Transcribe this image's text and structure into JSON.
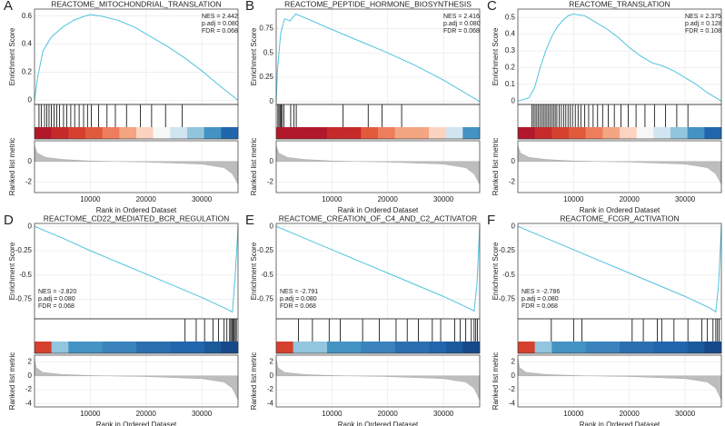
{
  "chart_data": [
    {
      "type": "gsea",
      "panel_label": "A",
      "title": "REACTOME_MITOCHONDRIAL_TRANSLATION",
      "annotations": [
        "NES = 2.442",
        "p.adj = 0.080",
        "FDR = 0.068"
      ],
      "stats_corner": "top-right",
      "ylabel": "Enrichment Score",
      "metric_ylabel": "Ranked list metric",
      "xlabel": "Rank in Ordered Dataset",
      "color": "#4fc3e0",
      "grid": true,
      "x": [
        0,
        500,
        1500,
        3000,
        5000,
        7000,
        9000,
        10000,
        12000,
        15000,
        18000,
        21000,
        24000,
        27000,
        30000,
        33000,
        36500
      ],
      "values": [
        0,
        0.15,
        0.35,
        0.45,
        0.52,
        0.57,
        0.6,
        0.61,
        0.6,
        0.57,
        0.52,
        0.45,
        0.38,
        0.3,
        0.21,
        0.11,
        0
      ],
      "hits": [
        800,
        1200,
        1800,
        2200,
        2600,
        3000,
        3500,
        4000,
        4500,
        5200,
        5800,
        6500,
        7200,
        8000,
        8800,
        9500,
        10200,
        11500,
        13000,
        14500,
        16500,
        19000,
        21000,
        23500,
        26500
      ],
      "colorbar": [
        "#b2182b",
        "#c62a2a",
        "#d6412f",
        "#e05a3c",
        "#ee7d5c",
        "#f4a582",
        "#fbd3c0",
        "#f7f7f7",
        "#d1e5f0",
        "#92c5de",
        "#4393c3",
        "#2166ac"
      ],
      "xlim": [
        0,
        36500
      ],
      "xticks": [
        10000,
        20000,
        30000
      ],
      "ylim": [
        -0.03,
        0.65
      ],
      "yticks": [
        0,
        0.2,
        0.4,
        0.6
      ],
      "metric_x": [
        0,
        500,
        2000,
        5000,
        10000,
        20000,
        30000,
        34000,
        35500,
        36500
      ],
      "metric_values": [
        1.5,
        0.8,
        0.4,
        0.2,
        0.05,
        -0.05,
        -0.25,
        -0.6,
        -1.2,
        -2.2
      ],
      "metric_ylim": [
        -3,
        2
      ],
      "metric_yticks": [
        -2,
        0
      ]
    },
    {
      "type": "gsea",
      "panel_label": "B",
      "title": "REACTOME_PEPTIDE_HORMONE_BIOSYNTHESIS",
      "annotations": [
        "NES = 2.416",
        "p.adj = 0.080",
        "FDR = 0.068"
      ],
      "stats_corner": "top-right",
      "ylabel": "Enrichment Score",
      "metric_ylabel": "Ranked list metric",
      "xlabel": "Rank in Ordered Dataset",
      "color": "#4fc3e0",
      "grid": true,
      "x": [
        0,
        200,
        800,
        1500,
        2500,
        3500,
        6000,
        10000,
        15000,
        20000,
        25000,
        30000,
        36500
      ],
      "values": [
        0,
        0.3,
        0.7,
        0.85,
        0.83,
        0.9,
        0.84,
        0.74,
        0.62,
        0.5,
        0.37,
        0.22,
        0
      ],
      "hits": [
        300,
        500,
        700,
        900,
        1100,
        1400,
        2600,
        3200,
        3600,
        12000,
        16500,
        19000,
        22500
      ],
      "colorbar": [
        "#b2182b",
        "#b2182b",
        "#b2182b",
        "#c62a2a",
        "#c62a2a",
        "#e05a3c",
        "#ee7d5c",
        "#f4a582",
        "#f4a582",
        "#fbd3c0",
        "#d1e5f0",
        "#4393c3"
      ],
      "xlim": [
        0,
        36500
      ],
      "xticks": [
        10000,
        20000,
        30000
      ],
      "ylim": [
        -0.03,
        0.95
      ],
      "yticks": [
        0,
        0.25,
        0.5,
        0.75
      ],
      "metric_x": [
        0,
        500,
        2000,
        5000,
        10000,
        20000,
        30000,
        34000,
        35500,
        36500
      ],
      "metric_values": [
        1.5,
        0.8,
        0.4,
        0.2,
        0.05,
        -0.05,
        -0.25,
        -0.6,
        -1.2,
        -2.2
      ],
      "metric_ylim": [
        -3,
        2
      ],
      "metric_yticks": [
        -2,
        0
      ]
    },
    {
      "type": "gsea",
      "panel_label": "C",
      "title": "REACTOME_TRANSLATION",
      "annotations": [
        "NES = 2.375",
        "p.adj = 0.128",
        "FDR = 0.108"
      ],
      "stats_corner": "top-right",
      "ylabel": "Enrichment Score",
      "metric_ylabel": "Ranked list metric",
      "xlabel": "Rank in Ordered Dataset",
      "color": "#4fc3e0",
      "grid": true,
      "x": [
        0,
        2000,
        3000,
        4000,
        5000,
        6000,
        7000,
        8000,
        9000,
        10000,
        12000,
        14000,
        16000,
        18000,
        20000,
        22000,
        24000,
        26000,
        28000,
        30000,
        32000,
        34000,
        36500
      ],
      "values": [
        0,
        0.02,
        0.08,
        0.2,
        0.3,
        0.38,
        0.44,
        0.48,
        0.51,
        0.52,
        0.51,
        0.47,
        0.43,
        0.38,
        0.32,
        0.27,
        0.23,
        0.21,
        0.18,
        0.14,
        0.1,
        0.05,
        0
      ],
      "hits": [
        2500,
        2800,
        3100,
        3400,
        3700,
        4000,
        4300,
        4600,
        4900,
        5200,
        5500,
        5800,
        6100,
        6400,
        6700,
        7000,
        7400,
        7800,
        8200,
        8600,
        9000,
        9400,
        9800,
        10300,
        10800,
        11300,
        12000,
        12700,
        13500,
        14300,
        15200,
        16200,
        17300,
        18500,
        19800,
        21200,
        22800,
        24500,
        26500,
        28500,
        30500
      ],
      "colorbar": [
        "#b2182b",
        "#c62a2a",
        "#d6412f",
        "#e05a3c",
        "#ee7d5c",
        "#f4a582",
        "#fbd3c0",
        "#f7f7f7",
        "#d1e5f0",
        "#92c5de",
        "#4393c3",
        "#2166ac"
      ],
      "xlim": [
        0,
        36500
      ],
      "xticks": [
        10000,
        20000,
        30000
      ],
      "ylim": [
        -0.02,
        0.55
      ],
      "yticks": [
        0,
        0.1,
        0.2,
        0.3,
        0.4,
        0.5
      ],
      "metric_x": [
        0,
        500,
        2000,
        5000,
        10000,
        20000,
        30000,
        34000,
        35500,
        36500
      ],
      "metric_values": [
        1.5,
        0.8,
        0.4,
        0.2,
        0.05,
        -0.05,
        -0.25,
        -0.6,
        -1.2,
        -2.2
      ],
      "metric_ylim": [
        -3,
        2
      ],
      "metric_yticks": [
        -2,
        0
      ]
    },
    {
      "type": "gsea",
      "panel_label": "D",
      "title": "REACTOME_CD22_MEDIATED_BCR_REGULATION",
      "annotations": [
        "NES = -2.820",
        "p.adj = 0.080",
        "FDR = 0.068"
      ],
      "stats_corner": "bottom-left",
      "ylabel": "Enrichment Score",
      "metric_ylabel": "Ranked list metric",
      "xlabel": "Rank in Ordered Dataset",
      "color": "#4fc3e0",
      "grid": true,
      "x": [
        0,
        5000,
        10000,
        15000,
        20000,
        25000,
        30000,
        34500,
        35500,
        36000,
        36500
      ],
      "values": [
        0,
        -0.12,
        -0.25,
        -0.37,
        -0.49,
        -0.61,
        -0.73,
        -0.85,
        -0.88,
        -0.5,
        0
      ],
      "hits": [
        27000,
        29000,
        30500,
        32000,
        33000,
        34000,
        34500,
        35000,
        35200,
        35400,
        35600,
        35800,
        36000,
        36200
      ],
      "colorbar": [
        "#d6412f",
        "#92c5de",
        "#4393c3",
        "#4393c3",
        "#3a83bd",
        "#3a83bd",
        "#2b6fb0",
        "#2b6fb0",
        "#2166ac",
        "#2166ac",
        "#1b5a9a",
        "#16498a"
      ],
      "xlim": [
        0,
        36500
      ],
      "xticks": [
        10000,
        20000,
        30000
      ],
      "ylim": [
        -0.95,
        0.03
      ],
      "yticks": [
        -0.75,
        -0.5,
        -0.25,
        0
      ],
      "metric_x": [
        0,
        300,
        1500,
        5000,
        10000,
        20000,
        30000,
        34000,
        35500,
        36500
      ],
      "metric_values": [
        2.5,
        1.2,
        0.5,
        0.2,
        0.05,
        -0.1,
        -0.4,
        -0.9,
        -1.8,
        -3.5
      ],
      "metric_ylim": [
        -4.5,
        3
      ],
      "metric_yticks": [
        -4,
        -2,
        0,
        2
      ]
    },
    {
      "type": "gsea",
      "panel_label": "E",
      "title": "REACTOME_CREATION_OF_C4_AND_C2_ACTIVATOR",
      "annotations": [
        "NES = -2.791",
        "p.adj = 0.080",
        "FDR = 0.068"
      ],
      "stats_corner": "bottom-left",
      "ylabel": "Enrichment Score",
      "metric_ylabel": "Ranked list metric",
      "xlabel": "Rank in Ordered Dataset",
      "color": "#4fc3e0",
      "grid": true,
      "x": [
        0,
        5000,
        10000,
        15000,
        20000,
        25000,
        30000,
        34500,
        35500,
        36000,
        36500
      ],
      "values": [
        0,
        -0.12,
        -0.24,
        -0.36,
        -0.48,
        -0.6,
        -0.72,
        -0.84,
        -0.87,
        -0.6,
        0
      ],
      "hits": [
        4000,
        6500,
        9500,
        11500,
        15500,
        18500,
        21500,
        23500,
        25500,
        28000,
        29500,
        32000,
        33000,
        34000,
        35000,
        35500,
        35800,
        36100
      ],
      "colorbar": [
        "#d6412f",
        "#92c5de",
        "#92c5de",
        "#4393c3",
        "#4393c3",
        "#3a83bd",
        "#3a83bd",
        "#2b6fb0",
        "#2b6fb0",
        "#2166ac",
        "#1b5a9a",
        "#16498a"
      ],
      "xlim": [
        0,
        36500
      ],
      "xticks": [
        10000,
        20000,
        30000
      ],
      "ylim": [
        -0.95,
        0.03
      ],
      "yticks": [
        -0.75,
        -0.5,
        -0.25,
        0
      ],
      "metric_x": [
        0,
        300,
        1500,
        5000,
        10000,
        20000,
        30000,
        34000,
        35500,
        36500
      ],
      "metric_values": [
        2.5,
        1.2,
        0.5,
        0.2,
        0.05,
        -0.1,
        -0.4,
        -0.9,
        -1.8,
        -3.5
      ],
      "metric_ylim": [
        -4.5,
        3
      ],
      "metric_yticks": [
        -4,
        -2,
        0,
        2
      ]
    },
    {
      "type": "gsea",
      "panel_label": "F",
      "title": "REACTOME_FCGR_ACTIVATION",
      "annotations": [
        "NES = -2.786",
        "p.adj = 0.080",
        "FDR = 0.068"
      ],
      "stats_corner": "bottom-left",
      "ylabel": "Enrichment Score",
      "metric_ylabel": "Ranked list metric",
      "xlabel": "Rank in Ordered Dataset",
      "color": "#4fc3e0",
      "grid": true,
      "x": [
        0,
        5000,
        10000,
        15000,
        20000,
        25000,
        30000,
        34500,
        35500,
        36000,
        36500
      ],
      "values": [
        0,
        -0.12,
        -0.24,
        -0.36,
        -0.48,
        -0.6,
        -0.72,
        -0.84,
        -0.88,
        -0.6,
        0
      ],
      "hits": [
        6000,
        10000,
        11500,
        20500,
        22500,
        25000,
        25800,
        28000,
        30500,
        33000,
        34000,
        35000,
        35500,
        35800,
        36100
      ],
      "colorbar": [
        "#d6412f",
        "#92c5de",
        "#4393c3",
        "#4393c3",
        "#3a83bd",
        "#3a83bd",
        "#2b6fb0",
        "#2b6fb0",
        "#2166ac",
        "#2166ac",
        "#1b5a9a",
        "#16498a"
      ],
      "xlim": [
        0,
        36500
      ],
      "xticks": [
        10000,
        20000,
        30000
      ],
      "ylim": [
        -0.95,
        0.03
      ],
      "yticks": [
        -0.75,
        -0.5,
        -0.25,
        0
      ],
      "metric_x": [
        0,
        300,
        1500,
        5000,
        10000,
        20000,
        30000,
        34000,
        35500,
        36500
      ],
      "metric_values": [
        2.5,
        1.2,
        0.5,
        0.2,
        0.05,
        -0.1,
        -0.4,
        -0.9,
        -1.8,
        -3.5
      ],
      "metric_ylim": [
        -4.5,
        3
      ],
      "metric_yticks": [
        -4,
        -2,
        0,
        2
      ]
    }
  ]
}
